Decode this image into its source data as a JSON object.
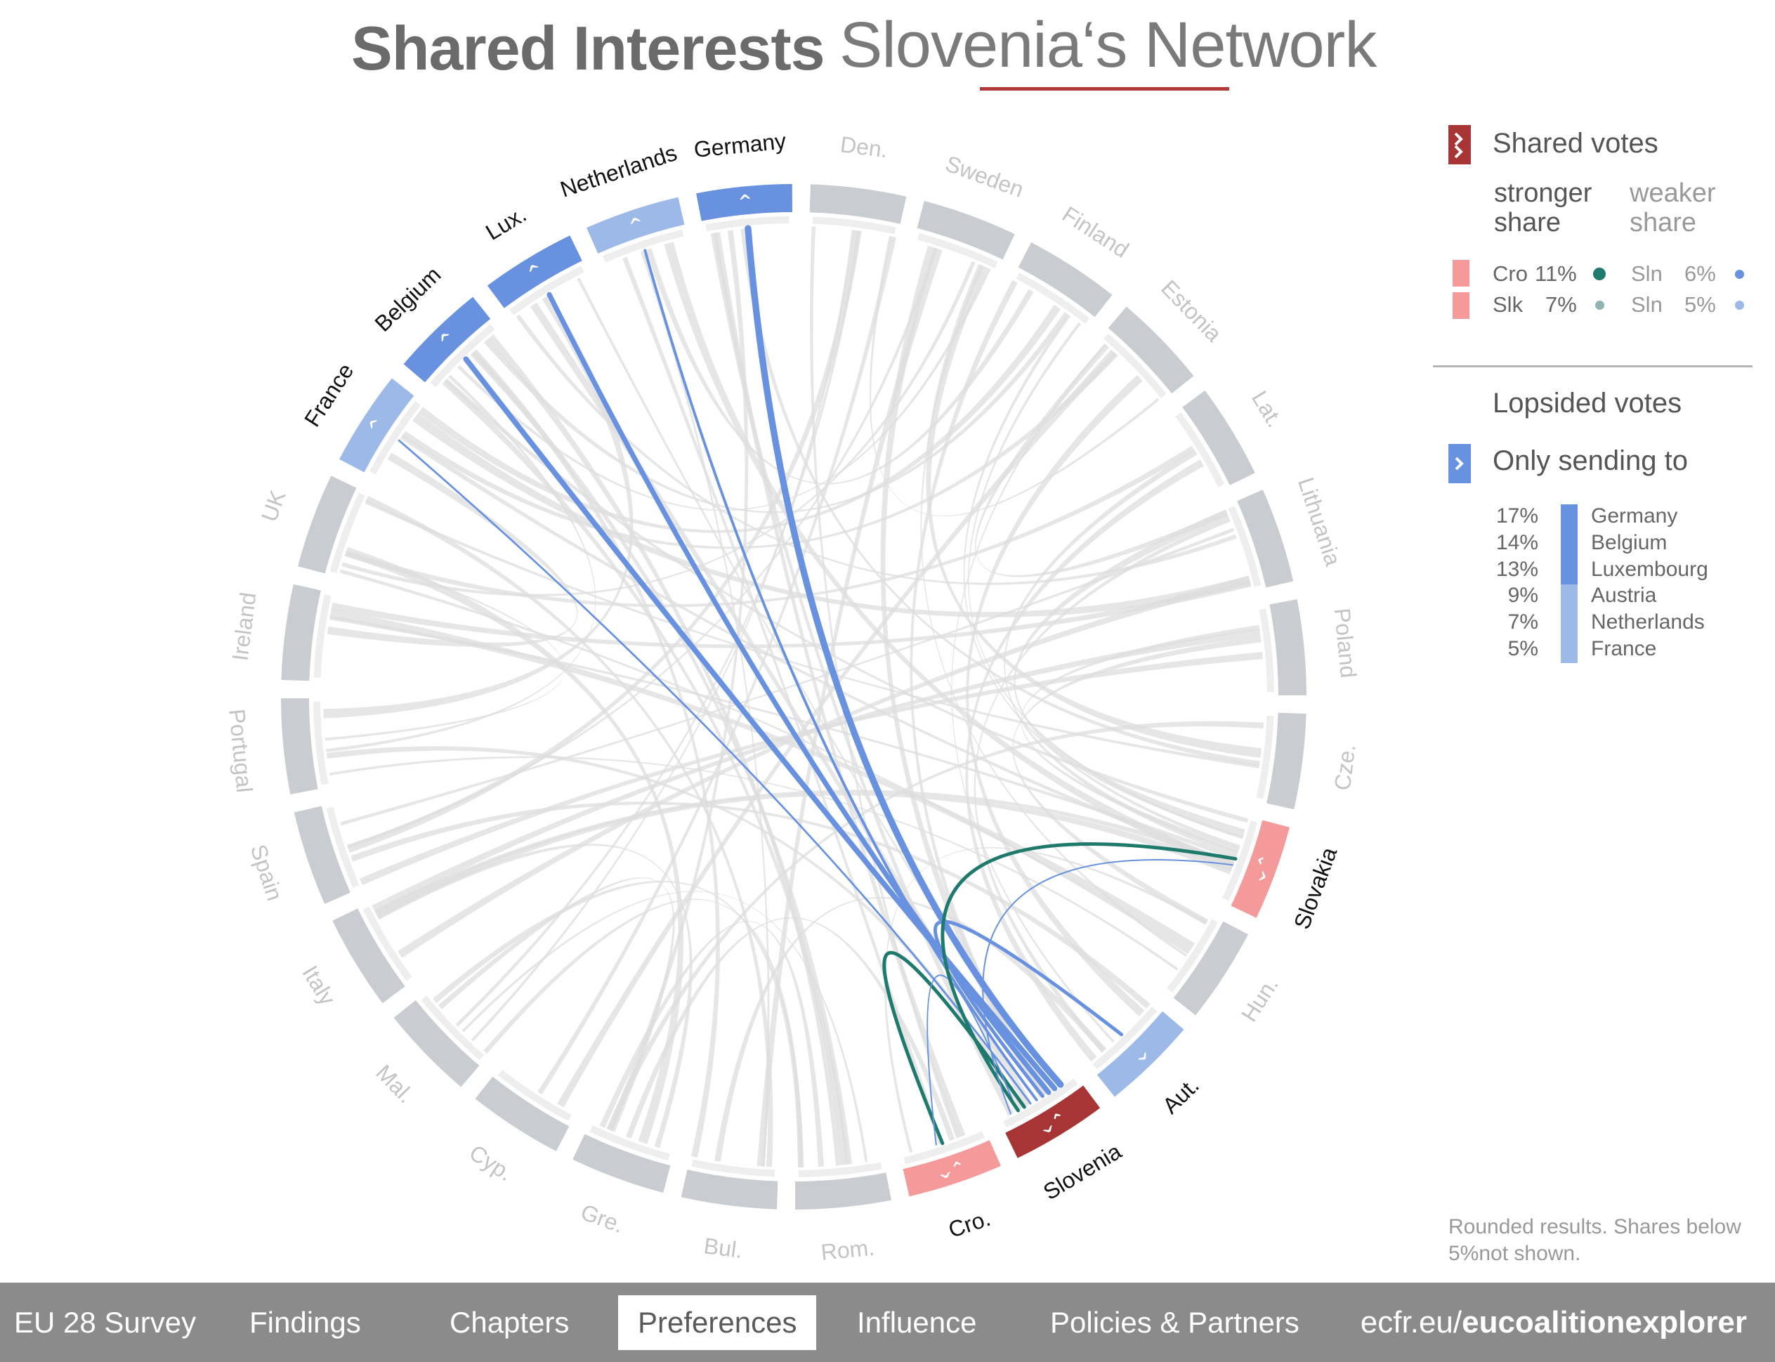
{
  "title": {
    "bold": "Shared Interests",
    "light": "Slovenia‘s Network"
  },
  "legend": {
    "shared_votes": "Shared votes",
    "stronger_share": [
      "stronger",
      "share"
    ],
    "weaker_share": [
      "weaker",
      "share"
    ],
    "rows": [
      {
        "country": "Cro",
        "pct": "11%",
        "other": "Sln",
        "other_pct": "6%"
      },
      {
        "country": "Slk",
        "pct": "7%",
        "other": "Sln",
        "other_pct": "5%"
      }
    ],
    "lopsided_votes": "Lopsided votes",
    "only_sending_to": "Only sending to",
    "sending": [
      {
        "pct": "17%",
        "name": "Germany"
      },
      {
        "pct": "14%",
        "name": "Belgium"
      },
      {
        "pct": "13%",
        "name": "Luxembourg"
      },
      {
        "pct": "9%",
        "name": "Austria"
      },
      {
        "pct": "7%",
        "name": "Netherlands"
      },
      {
        "pct": "5%",
        "name": "France"
      }
    ],
    "icons": {
      "shared": "double-chevron-icon",
      "sending": "chevron-right-icon"
    }
  },
  "footnote": "Rounded results. Shares below 5%not shown.",
  "nav": {
    "items": [
      "EU 28 Survey",
      "Findings",
      "Chapters",
      "Preferences",
      "Influence",
      "Policies & Partners"
    ],
    "active": "Preferences",
    "brand_light": "ecfr.eu/",
    "brand_bold": "eucoalitionexplorer"
  },
  "colors": {
    "strong_blue": "#6892df",
    "light_blue": "#9cb9e8",
    "pink": "#f59a9a",
    "dark_red": "#a83535",
    "teal": "#1f7a6e",
    "grey_arc": "#c9ccd0",
    "grey_ribbon": "#dedede",
    "label_grey": "#c4c4c4"
  },
  "chart_data": {
    "type": "chord",
    "focus": "Slovenia",
    "countries": [
      {
        "label": "Germany",
        "role": "sending",
        "share": 17
      },
      {
        "label": "Den.",
        "role": "none"
      },
      {
        "label": "Sweden",
        "role": "none"
      },
      {
        "label": "Finland",
        "role": "none"
      },
      {
        "label": "Estonia",
        "role": "none"
      },
      {
        "label": "Lat.",
        "role": "none"
      },
      {
        "label": "Lithuania",
        "role": "none"
      },
      {
        "label": "Poland",
        "role": "none"
      },
      {
        "label": "Cze.",
        "role": "none"
      },
      {
        "label": "Slovakia",
        "role": "shared",
        "share": 7
      },
      {
        "label": "Hun.",
        "role": "none"
      },
      {
        "label": "Aut.",
        "role": "sending",
        "share": 9
      },
      {
        "label": "Slovenia",
        "role": "focus"
      },
      {
        "label": "Cro.",
        "role": "shared",
        "share": 11
      },
      {
        "label": "Rom.",
        "role": "none"
      },
      {
        "label": "Bul.",
        "role": "none"
      },
      {
        "label": "Gre.",
        "role": "none"
      },
      {
        "label": "Cyp.",
        "role": "none"
      },
      {
        "label": "Mal.",
        "role": "none"
      },
      {
        "label": "Italy",
        "role": "none"
      },
      {
        "label": "Spain",
        "role": "none"
      },
      {
        "label": "Portugal",
        "role": "none"
      },
      {
        "label": "Ireland",
        "role": "none"
      },
      {
        "label": "UK",
        "role": "none"
      },
      {
        "label": "France",
        "role": "sending",
        "share": 5
      },
      {
        "label": "Belgium",
        "role": "sending",
        "share": 14
      },
      {
        "label": "Lux.",
        "role": "sending",
        "share": 13
      },
      {
        "label": "Netherlands",
        "role": "sending",
        "share": 7
      }
    ],
    "links_from_slovenia": [
      {
        "to": "Germany",
        "type": "sending",
        "share": 17
      },
      {
        "to": "Belgium",
        "type": "sending",
        "share": 14
      },
      {
        "to": "Lux.",
        "type": "sending",
        "share": 13
      },
      {
        "to": "Aut.",
        "type": "sending",
        "share": 9
      },
      {
        "to": "Netherlands",
        "type": "sending",
        "share": 7
      },
      {
        "to": "France",
        "type": "sending",
        "share": 5
      },
      {
        "to": "Cro.",
        "type": "shared",
        "share": 11,
        "return_share": 6
      },
      {
        "to": "Slovakia",
        "type": "shared",
        "share": 7,
        "return_share": 5
      }
    ]
  }
}
